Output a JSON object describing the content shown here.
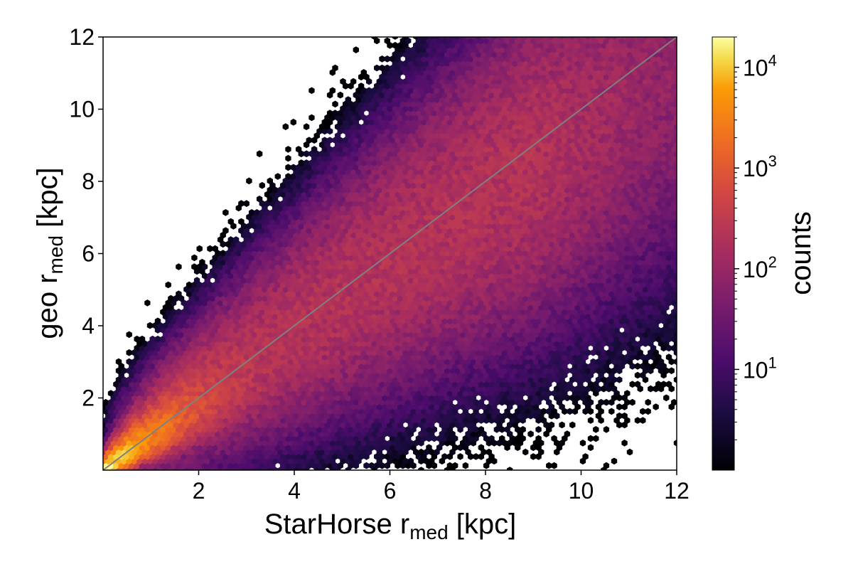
{
  "chart_data": {
    "type": "heatmap",
    "subtype": "hexbin",
    "title": "",
    "xlabel": "StarHorse r",
    "xlabel_subscript": "med",
    "xlabel_unit": "[kpc]",
    "ylabel": "geo r",
    "ylabel_subscript": "med",
    "ylabel_unit": "[kpc]",
    "xlim": [
      0,
      12
    ],
    "ylim": [
      0,
      12
    ],
    "xticks": [
      2,
      4,
      6,
      8,
      10,
      12
    ],
    "yticks": [
      2,
      4,
      6,
      8,
      10,
      12
    ],
    "grid": false,
    "reference_line": {
      "type": "one-to-one",
      "from": [
        0,
        0
      ],
      "to": [
        12,
        12
      ],
      "color": "#808080"
    },
    "colorbar": {
      "label": "counts",
      "scale": "log",
      "colormap": "inferno",
      "range": [
        1,
        20000
      ],
      "tick_values": [
        10,
        100,
        1000,
        10000
      ],
      "tick_labels": [
        {
          "base": "10",
          "exp": "1"
        },
        {
          "base": "10",
          "exp": "2"
        },
        {
          "base": "10",
          "exp": "3"
        },
        {
          "base": "10",
          "exp": "4"
        }
      ]
    },
    "density_model": {
      "description": "counts concentrated along the 1:1 line, peaking near origin",
      "peak_count": 20000,
      "spread_grows_with_distance": true
    }
  }
}
